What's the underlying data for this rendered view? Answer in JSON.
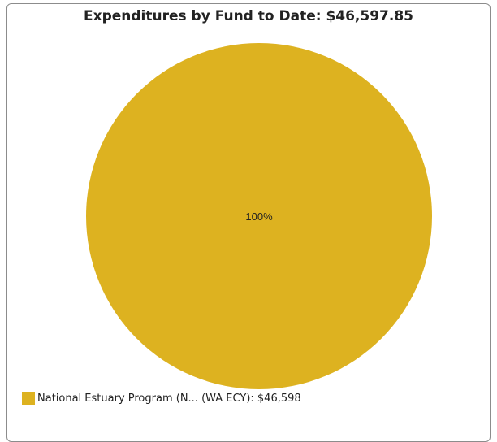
{
  "chart_data": {
    "type": "pie",
    "title": "Expenditures by Fund to Date: $46,597.85",
    "slices": [
      {
        "label": "National Estuary Program (N... (WA ECY): $46,598",
        "value": 46597.85,
        "percent_label": "100%",
        "color": "#DDB220"
      }
    ],
    "legend": "bottom-left"
  }
}
